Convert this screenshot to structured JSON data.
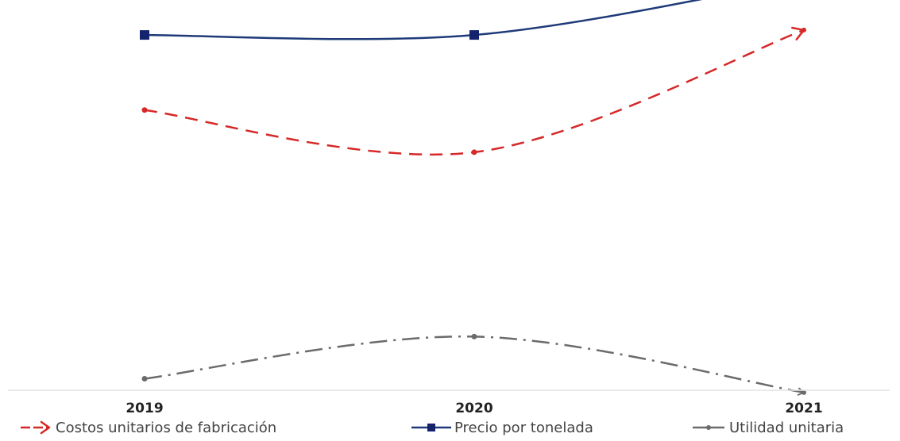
{
  "chart_data": {
    "type": "line",
    "title": "",
    "xlabel": "",
    "ylabel": "",
    "categories": [
      "2019",
      "2020",
      "2021"
    ],
    "ylim": [
      0,
      100
    ],
    "grid": false,
    "legend_position": "bottom",
    "series": [
      {
        "name": "Costos unitarios de fabricación",
        "values": [
          73.8,
          64.3,
          91.8
        ],
        "color": "#d62828",
        "line_style": "dashed",
        "marker": "dot",
        "end_marker": "open-arrow"
      },
      {
        "name": "Precio por tonelada",
        "values": [
          90.7,
          90.7,
          103.2
        ],
        "color": "#1e3a78",
        "marker_color": "#14236b",
        "line_style": "solid",
        "marker": "square"
      },
      {
        "name": "Utilidad unitaria",
        "values": [
          13.3,
          22.8,
          10.2
        ],
        "color": "#6b6b6b",
        "line_style": "dash-dot",
        "marker": "dot",
        "end_marker": "small-arrow"
      }
    ]
  }
}
